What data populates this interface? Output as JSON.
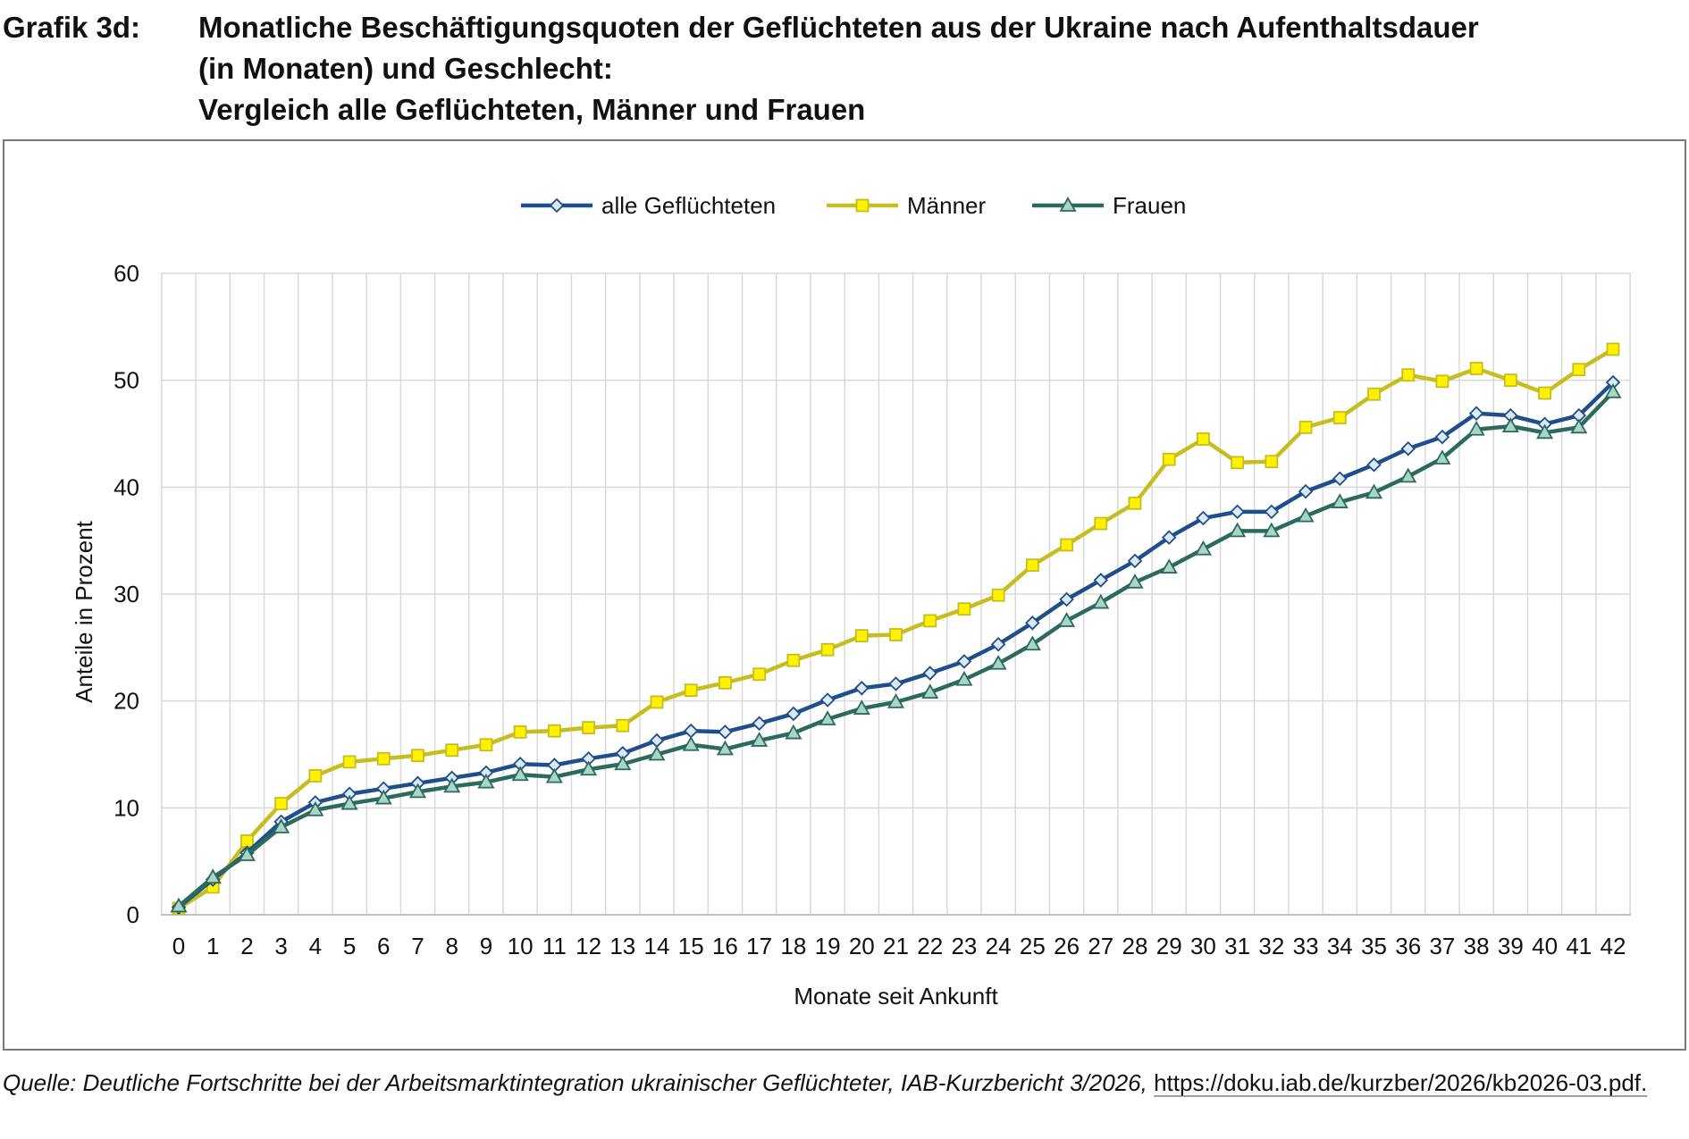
{
  "header": {
    "label": "Grafik 3d:",
    "title_lines": [
      "Monatliche Beschäftigungsquoten der Geflüchteten aus der Ukraine nach Aufenthaltsdauer",
      "(in Monaten) und Geschlecht:",
      "Vergleich alle Geflüchteten, Männer und Frauen"
    ]
  },
  "source": {
    "italic": "Quelle: Deutliche Fortschritte bei der Arbeitsmarktintegration ukrainischer Geflüchteter, IAB-Kurzbericht 3/2026,",
    "link": "https://doku.iab.de/kurzber/2026/kb2026-03.pdf."
  },
  "chart_data": {
    "type": "line",
    "title": "",
    "xlabel": "Monate seit Ankunft",
    "ylabel": "Anteile in Prozent",
    "ylim": [
      0,
      60
    ],
    "yticks": [
      0,
      10,
      20,
      30,
      40,
      50,
      60
    ],
    "grid": true,
    "legend_position": "top-center",
    "x": [
      0,
      1,
      2,
      3,
      4,
      5,
      6,
      7,
      8,
      9,
      10,
      11,
      12,
      13,
      14,
      15,
      16,
      17,
      18,
      19,
      20,
      21,
      22,
      23,
      24,
      25,
      26,
      27,
      28,
      29,
      30,
      31,
      32,
      33,
      34,
      35,
      36,
      37,
      38,
      39,
      40,
      41,
      42
    ],
    "series": [
      {
        "name": "alle Geflüchteten",
        "color": "#1f4e8c",
        "marker": "diamond",
        "marker_fill": "#dce9f7",
        "values": [
          0.7,
          3.3,
          5.8,
          8.7,
          10.5,
          11.3,
          11.8,
          12.3,
          12.8,
          13.3,
          14.1,
          14.0,
          14.6,
          15.1,
          16.3,
          17.2,
          17.1,
          17.9,
          18.8,
          20.1,
          21.2,
          21.6,
          22.6,
          23.7,
          25.3,
          27.3,
          29.5,
          31.3,
          33.1,
          35.3,
          37.1,
          37.7,
          37.7,
          39.6,
          40.8,
          42.1,
          43.6,
          44.7,
          46.9,
          46.7,
          45.9,
          46.7,
          49.8
        ]
      },
      {
        "name": "Männer",
        "color": "#c6bd1f",
        "marker": "square",
        "marker_fill": "#fff200",
        "values": [
          0.6,
          2.6,
          6.9,
          10.4,
          13.0,
          14.3,
          14.6,
          14.9,
          15.4,
          15.9,
          17.1,
          17.2,
          17.5,
          17.7,
          19.9,
          21.0,
          21.7,
          22.5,
          23.8,
          24.8,
          26.1,
          26.2,
          27.5,
          28.6,
          29.9,
          32.7,
          34.6,
          36.6,
          38.5,
          42.6,
          44.5,
          42.3,
          42.4,
          45.6,
          46.5,
          48.7,
          50.5,
          49.9,
          51.1,
          50.0,
          48.8,
          51.0,
          52.9
        ]
      },
      {
        "name": "Frauen",
        "color": "#2d6a5e",
        "marker": "triangle",
        "marker_fill": "#a8d5c5",
        "values": [
          0.8,
          3.5,
          5.6,
          8.2,
          9.8,
          10.4,
          10.9,
          11.5,
          12.0,
          12.4,
          13.1,
          12.9,
          13.6,
          14.1,
          15.0,
          15.9,
          15.5,
          16.3,
          17.0,
          18.3,
          19.3,
          19.9,
          20.8,
          22.0,
          23.5,
          25.3,
          27.5,
          29.2,
          31.1,
          32.5,
          34.2,
          35.9,
          35.9,
          37.3,
          38.6,
          39.5,
          41.0,
          42.7,
          45.4,
          45.7,
          45.1,
          45.6,
          48.9
        ]
      }
    ]
  }
}
